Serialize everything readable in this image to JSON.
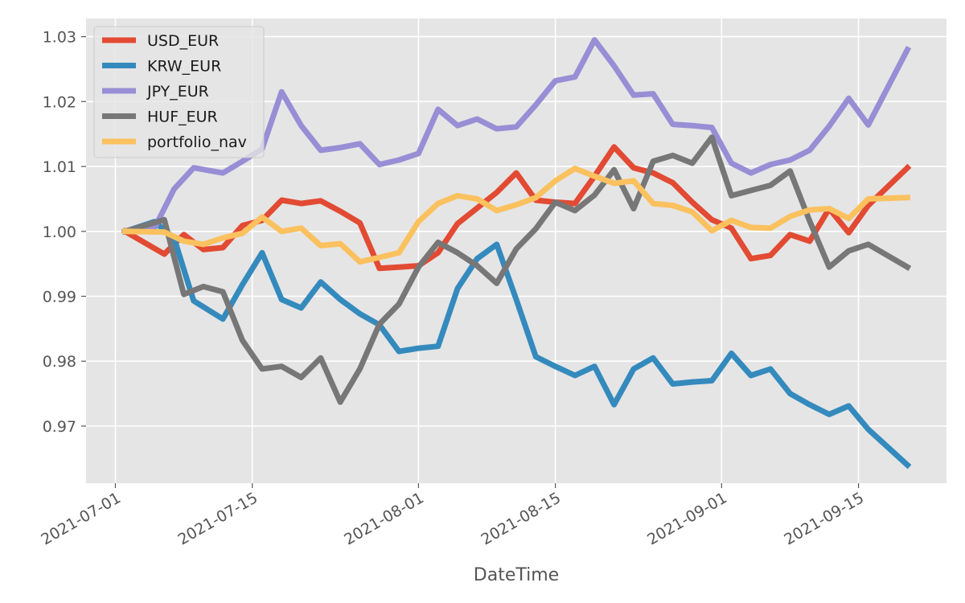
{
  "chart_data": {
    "type": "line",
    "title": "",
    "xlabel": "DateTime",
    "ylabel": "",
    "x_ticks": [
      "2021-07-01",
      "2021-07-15",
      "2021-08-01",
      "2021-08-15",
      "2021-09-01",
      "2021-09-15"
    ],
    "y_ticks": [
      "0.97",
      "0.98",
      "0.99",
      "1.00",
      "1.01",
      "1.02",
      "1.03"
    ],
    "xlim": [
      "2020-06-28",
      "2021-09-27"
    ],
    "ylim": [
      0.9612,
      1.0328
    ],
    "grid": true,
    "legend_position": "upper left",
    "x": [
      "2021-07-02",
      "2021-07-05",
      "2021-07-06",
      "2021-07-07",
      "2021-07-08",
      "2021-07-09",
      "2021-07-12",
      "2021-07-13",
      "2021-07-14",
      "2021-07-15",
      "2021-07-16",
      "2021-07-19",
      "2021-07-20",
      "2021-07-21",
      "2021-07-22",
      "2021-07-23",
      "2021-07-26",
      "2021-07-27",
      "2021-07-28",
      "2021-07-29",
      "2021-07-30",
      "2021-08-02",
      "2021-08-03",
      "2021-08-04",
      "2021-08-05",
      "2021-08-06",
      "2021-08-09",
      "2021-08-10",
      "2021-08-11",
      "2021-08-12",
      "2021-08-13",
      "2021-08-16",
      "2021-08-17",
      "2021-08-18",
      "2021-08-19",
      "2021-08-20",
      "2021-08-23",
      "2021-08-24",
      "2021-08-25",
      "2021-08-26",
      "2021-08-27",
      "2021-08-30",
      "2021-08-31",
      "2021-09-01",
      "2021-09-02",
      "2021-09-03",
      "2021-09-06",
      "2021-09-07",
      "2021-09-08",
      "2021-09-09",
      "2021-09-10",
      "2021-09-13",
      "2021-09-14",
      "2021-09-15",
      "2021-09-16",
      "2021-09-17",
      "2021-09-20",
      "2021-09-21"
    ],
    "series": [
      {
        "name": "USD_EUR",
        "color": "#E24A33",
        "x": [
          "2021-07-02",
          "2021-07-06",
          "2021-07-08",
          "2021-07-10",
          "2021-07-12",
          "2021-07-14",
          "2021-07-16",
          "2021-07-18",
          "2021-07-20",
          "2021-07-22",
          "2021-07-24",
          "2021-07-26",
          "2021-07-28",
          "2021-07-30",
          "2021-08-01",
          "2021-08-03",
          "2021-08-05",
          "2021-08-07",
          "2021-08-09",
          "2021-08-11",
          "2021-08-13",
          "2021-08-15",
          "2021-08-17",
          "2021-08-19",
          "2021-08-21",
          "2021-08-23",
          "2021-08-25",
          "2021-08-27",
          "2021-08-29",
          "2021-08-31",
          "2021-09-02",
          "2021-09-04",
          "2021-09-06",
          "2021-09-08",
          "2021-09-10",
          "2021-09-12",
          "2021-09-14",
          "2021-09-16",
          "2021-09-20"
        ],
        "values": [
          1.0,
          0.9965,
          0.9995,
          0.9972,
          0.9975,
          1.0009,
          1.0017,
          1.0048,
          1.0043,
          1.0047,
          1.0031,
          1.0013,
          0.9943,
          0.9945,
          0.9947,
          0.9967,
          1.0012,
          1.0036,
          1.006,
          1.009,
          1.0048,
          1.0045,
          1.0043,
          1.0085,
          1.013,
          1.0098,
          1.009,
          1.0075,
          1.0045,
          1.0018,
          1.0005,
          0.9958,
          0.9963,
          0.9995,
          0.9985,
          1.0035,
          0.9998,
          1.004,
          1.0098
        ]
      },
      {
        "name": "KRW_EUR",
        "color": "#348ABD",
        "x": [
          "2021-07-02",
          "2021-07-05",
          "2021-07-07",
          "2021-07-09",
          "2021-07-12",
          "2021-07-14",
          "2021-07-16",
          "2021-07-18",
          "2021-07-20",
          "2021-07-22",
          "2021-07-24",
          "2021-07-26",
          "2021-07-28",
          "2021-07-30",
          "2021-08-01",
          "2021-08-03",
          "2021-08-05",
          "2021-08-07",
          "2021-08-09",
          "2021-08-11",
          "2021-08-13",
          "2021-08-15",
          "2021-08-17",
          "2021-08-19",
          "2021-08-21",
          "2021-08-23",
          "2021-08-25",
          "2021-08-27",
          "2021-08-29",
          "2021-08-31",
          "2021-09-02",
          "2021-09-04",
          "2021-09-06",
          "2021-09-08",
          "2021-09-10",
          "2021-09-12",
          "2021-09-14",
          "2021-09-16",
          "2021-09-20"
        ],
        "values": [
          1.0,
          1.0015,
          0.999,
          0.9893,
          0.9865,
          0.9918,
          0.9967,
          0.9895,
          0.9882,
          0.9922,
          0.9895,
          0.9873,
          0.9856,
          0.9815,
          0.982,
          0.9823,
          0.9912,
          0.9958,
          0.998,
          0.9895,
          0.9807,
          0.9792,
          0.9778,
          0.9792,
          0.9733,
          0.9788,
          0.9805,
          0.9765,
          0.9768,
          0.977,
          0.9812,
          0.9778,
          0.9788,
          0.975,
          0.9733,
          0.9718,
          0.9731,
          0.9695,
          0.964
        ]
      },
      {
        "name": "JPY_EUR",
        "color": "#988ED5",
        "x": [
          "2021-07-02",
          "2021-07-05",
          "2021-07-07",
          "2021-07-09",
          "2021-07-12",
          "2021-07-14",
          "2021-07-16",
          "2021-07-18",
          "2021-07-20",
          "2021-07-22",
          "2021-07-24",
          "2021-07-26",
          "2021-07-28",
          "2021-07-30",
          "2021-08-01",
          "2021-08-03",
          "2021-08-05",
          "2021-08-07",
          "2021-08-09",
          "2021-08-11",
          "2021-08-13",
          "2021-08-15",
          "2021-08-17",
          "2021-08-19",
          "2021-08-21",
          "2021-08-23",
          "2021-08-25",
          "2021-08-27",
          "2021-08-29",
          "2021-08-31",
          "2021-09-02",
          "2021-09-04",
          "2021-09-06",
          "2021-09-08",
          "2021-09-10",
          "2021-09-12",
          "2021-09-14",
          "2021-09-16",
          "2021-09-20"
        ],
        "values": [
          1.0,
          1.0005,
          1.0065,
          1.0098,
          1.009,
          1.0108,
          1.0127,
          1.0215,
          1.0163,
          1.0125,
          1.0129,
          1.0135,
          1.0103,
          1.011,
          1.012,
          1.0188,
          1.0163,
          1.0173,
          1.0158,
          1.0161,
          1.0195,
          1.0232,
          1.0238,
          1.0295,
          1.0255,
          1.021,
          1.0212,
          1.0165,
          1.0163,
          1.016,
          1.0105,
          1.009,
          1.0103,
          1.011,
          1.0125,
          1.0162,
          1.0205,
          1.0164,
          1.028
        ]
      },
      {
        "name": "HUF_EUR",
        "color": "#777777",
        "x": [
          "2021-07-02",
          "2021-07-06",
          "2021-07-08",
          "2021-07-10",
          "2021-07-12",
          "2021-07-14",
          "2021-07-16",
          "2021-07-18",
          "2021-07-20",
          "2021-07-22",
          "2021-07-24",
          "2021-07-26",
          "2021-07-28",
          "2021-07-30",
          "2021-08-01",
          "2021-08-03",
          "2021-08-05",
          "2021-08-07",
          "2021-08-09",
          "2021-08-11",
          "2021-08-13",
          "2021-08-15",
          "2021-08-17",
          "2021-08-19",
          "2021-08-21",
          "2021-08-23",
          "2021-08-25",
          "2021-08-27",
          "2021-08-29",
          "2021-08-31",
          "2021-09-02",
          "2021-09-04",
          "2021-09-06",
          "2021-09-08",
          "2021-09-10",
          "2021-09-12",
          "2021-09-14",
          "2021-09-16",
          "2021-09-20"
        ],
        "values": [
          1.0,
          1.0018,
          0.9903,
          0.9915,
          0.9907,
          0.9832,
          0.9788,
          0.9792,
          0.9775,
          0.9805,
          0.9737,
          0.9788,
          0.9857,
          0.9888,
          0.9945,
          0.9983,
          0.9967,
          0.9947,
          0.992,
          0.9973,
          1.0004,
          1.0045,
          1.0032,
          1.0056,
          1.0095,
          1.0035,
          1.0108,
          1.0117,
          1.0105,
          1.0145,
          1.0055,
          1.0063,
          1.0071,
          1.0093,
          1.0016,
          0.9945,
          0.997,
          0.998,
          0.9945
        ]
      },
      {
        "name": "portfolio_nav",
        "color": "#FBC15E",
        "x": [
          "2021-07-02",
          "2021-07-06",
          "2021-07-08",
          "2021-07-10",
          "2021-07-12",
          "2021-07-14",
          "2021-07-16",
          "2021-07-18",
          "2021-07-20",
          "2021-07-22",
          "2021-07-24",
          "2021-07-26",
          "2021-07-28",
          "2021-07-30",
          "2021-08-01",
          "2021-08-03",
          "2021-08-05",
          "2021-08-07",
          "2021-08-09",
          "2021-08-11",
          "2021-08-13",
          "2021-08-15",
          "2021-08-17",
          "2021-08-19",
          "2021-08-21",
          "2021-08-23",
          "2021-08-25",
          "2021-08-27",
          "2021-08-29",
          "2021-08-31",
          "2021-09-02",
          "2021-09-04",
          "2021-09-06",
          "2021-09-08",
          "2021-09-10",
          "2021-09-12",
          "2021-09-14",
          "2021-09-16",
          "2021-09-20"
        ],
        "values": [
          1.0,
          0.9999,
          0.9985,
          0.998,
          0.999,
          0.9997,
          1.0022,
          1.0,
          1.0005,
          0.9978,
          0.9981,
          0.9953,
          0.996,
          0.9967,
          1.0015,
          1.0043,
          1.0055,
          1.005,
          1.0032,
          1.0041,
          1.0052,
          1.0078,
          1.0097,
          1.0085,
          1.0074,
          1.0078,
          1.0043,
          1.004,
          1.003,
          1.0001,
          1.0017,
          1.0006,
          1.0005,
          1.0023,
          1.0033,
          1.0035,
          1.002,
          1.005,
          1.0052
        ]
      }
    ]
  }
}
